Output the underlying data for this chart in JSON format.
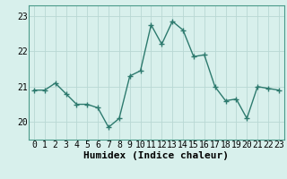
{
  "x": [
    0,
    1,
    2,
    3,
    4,
    5,
    6,
    7,
    8,
    9,
    10,
    11,
    12,
    13,
    14,
    15,
    16,
    17,
    18,
    19,
    20,
    21,
    22,
    23
  ],
  "y": [
    20.9,
    20.9,
    21.1,
    20.8,
    20.5,
    20.5,
    20.4,
    19.85,
    20.1,
    21.3,
    21.45,
    22.75,
    22.2,
    22.85,
    22.6,
    21.85,
    21.9,
    21.0,
    20.6,
    20.65,
    20.1,
    21.0,
    20.95,
    20.9
  ],
  "line_color": "#2d7a6e",
  "marker": "+",
  "marker_size": 4,
  "marker_lw": 1.0,
  "line_width": 1.0,
  "bg_color": "#d8f0ec",
  "grid_color": "#b8d8d4",
  "xlabel": "Humidex (Indice chaleur)",
  "ylim": [
    19.5,
    23.3
  ],
  "xlim": [
    -0.5,
    23.5
  ],
  "yticks": [
    20,
    21,
    22,
    23
  ],
  "xticks": [
    0,
    1,
    2,
    3,
    4,
    5,
    6,
    7,
    8,
    9,
    10,
    11,
    12,
    13,
    14,
    15,
    16,
    17,
    18,
    19,
    20,
    21,
    22,
    23
  ],
  "tick_fontsize": 7,
  "xlabel_fontsize": 8
}
